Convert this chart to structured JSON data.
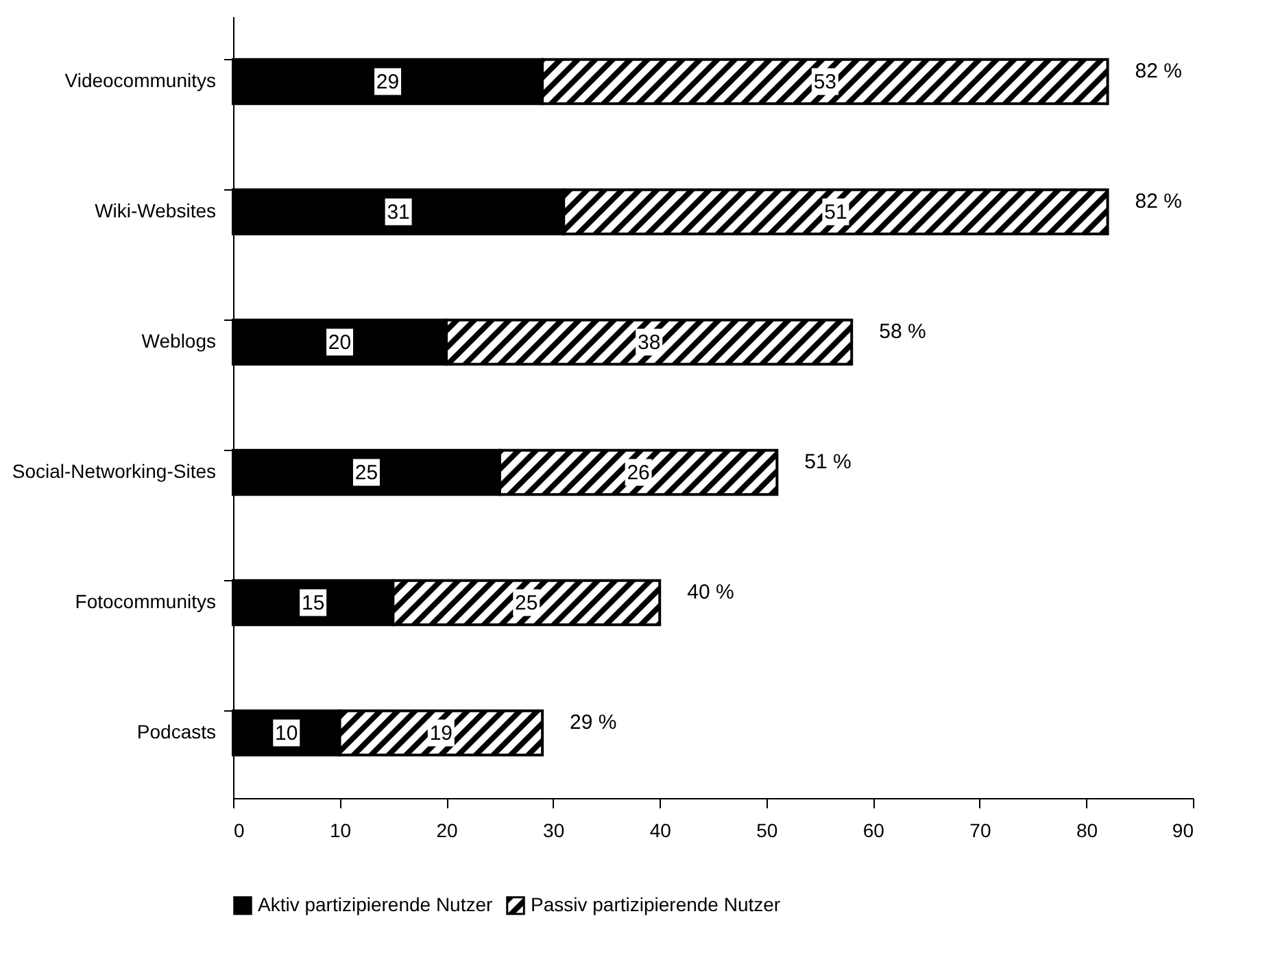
{
  "chart_data": {
    "type": "bar",
    "orientation": "horizontal",
    "stacked": true,
    "categories": [
      "Videocommunitys",
      "Wiki-Websites",
      "Weblogs",
      "Social-Networking-Sites",
      "Fotocommunitys",
      "Podcasts"
    ],
    "series": [
      {
        "name": "Aktiv partizipierende Nutzer",
        "color": "#000000",
        "values": [
          29,
          31,
          20,
          25,
          15,
          10
        ]
      },
      {
        "name": "Passiv partizipierende Nutzer",
        "color": "#000000",
        "values": [
          53,
          51,
          38,
          26,
          25,
          19
        ]
      }
    ],
    "xlim": [
      0,
      90
    ],
    "xticks": [
      0,
      10,
      20,
      30,
      40,
      50,
      60,
      70,
      80,
      90
    ],
    "data_labels": true,
    "totals": [
      "82 %",
      "82 %",
      "58 %",
      "51 %",
      "40 %",
      "29 %"
    ],
    "grid": false,
    "legend": "bottom"
  }
}
